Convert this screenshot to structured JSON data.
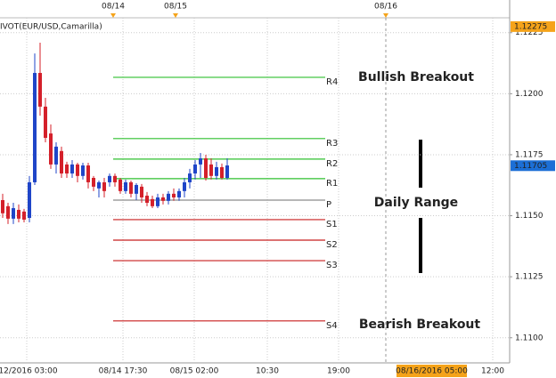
{
  "chart_data": {
    "type": "candlestick",
    "indicator": "IVOT(EUR/USD,Camarilla)",
    "ylim": [
      1.10908,
      1.12311
    ],
    "yticks": [
      {
        "value": 1.11,
        "label": "1.1100"
      },
      1.1125,
      {
        "value": 1.115,
        "label": "1.1150"
      },
      1.1175,
      {
        "value": 1.12,
        "label": "1.1200"
      },
      1.1225
    ],
    "grid": true,
    "up_color": "#1f45c8",
    "down_color": "#d4202a",
    "open": [
      1.11564,
      1.11539,
      1.11488,
      1.11524,
      1.11517,
      1.11491,
      1.11637,
      1.12085,
      1.11947,
      1.11837,
      1.1171,
      1.11765,
      1.1171,
      1.11673,
      1.1171,
      1.11663,
      1.11706,
      1.11655,
      1.11612,
      1.11637,
      1.11637,
      1.11663,
      1.11648,
      1.11601,
      1.11637,
      1.1159,
      1.11619,
      1.11582,
      1.11568,
      1.11539,
      1.11575,
      1.11561,
      1.1159,
      1.11575,
      1.11601,
      1.11637,
      1.11673,
      1.1171,
      1.11735,
      1.1171,
      1.11663,
      1.11699,
      1.11655
    ],
    "high": [
      1.1159,
      1.11553,
      1.11553,
      1.11546,
      1.11528,
      1.11663,
      1.12165,
      1.12209,
      1.11983,
      1.11874,
      1.11801,
      1.11783,
      1.11721,
      1.11728,
      1.11717,
      1.11717,
      1.11717,
      1.11663,
      1.11644,
      1.11655,
      1.11673,
      1.11673,
      1.11655,
      1.11648,
      1.11644,
      1.11633,
      1.1163,
      1.11597,
      1.11582,
      1.1159,
      1.1159,
      1.11601,
      1.11612,
      1.11612,
      1.11655,
      1.11692,
      1.11728,
      1.11757,
      1.1175,
      1.11735,
      1.11721,
      1.11714,
      1.11735
    ],
    "low": [
      1.11491,
      1.11466,
      1.11466,
      1.11473,
      1.11473,
      1.11473,
      1.11626,
      1.1191,
      1.11801,
      1.11692,
      1.11673,
      1.11655,
      1.11655,
      1.11655,
      1.11637,
      1.11648,
      1.11612,
      1.11601,
      1.11575,
      1.11575,
      1.11619,
      1.11619,
      1.1159,
      1.1159,
      1.11575,
      1.11564,
      1.11553,
      1.11539,
      1.11531,
      1.11531,
      1.11546,
      1.11546,
      1.11561,
      1.11561,
      1.11575,
      1.11612,
      1.11648,
      1.11655,
      1.11644,
      1.11648,
      1.11648,
      1.11648,
      1.11648
    ],
    "close": [
      1.1151,
      1.11488,
      1.11531,
      1.11488,
      1.11484,
      1.11637,
      1.12085,
      1.11947,
      1.11819,
      1.1171,
      1.11783,
      1.11673,
      1.11673,
      1.1171,
      1.11663,
      1.11706,
      1.11637,
      1.11619,
      1.11637,
      1.11601,
      1.11663,
      1.11637,
      1.11601,
      1.11637,
      1.1159,
      1.11626,
      1.11575,
      1.11553,
      1.11539,
      1.11575,
      1.11561,
      1.1159,
      1.11575,
      1.11601,
      1.11637,
      1.11673,
      1.1171,
      1.11735,
      1.11655,
      1.11663,
      1.11699,
      1.11655,
      1.11706
    ],
    "x_labels": [
      "/12/2016 03:00",
      "08/14 17:30",
      "08/15 02:00",
      "10:30",
      "19:00",
      "12:00"
    ],
    "cursor_label": "08/16/2016 05:00",
    "session_markers": [
      "08/14",
      "08/15",
      "08/16"
    ],
    "levels": {
      "names": [
        "R4",
        "R3",
        "R2",
        "R1",
        "P",
        "S1",
        "S2",
        "S3",
        "S4"
      ],
      "values": [
        1.12067,
        1.11816,
        1.11732,
        1.11652,
        1.11564,
        1.11484,
        1.114,
        1.11316,
        1.11069
      ],
      "colors": [
        "#2fbf2f",
        "#2fbf2f",
        "#2fbf2f",
        "#2fbf2f",
        "#8c8c8c",
        "#c81e1e",
        "#c81e1e",
        "#c81e1e",
        "#c81e1e"
      ]
    },
    "price_labels": [
      {
        "value": 1.12275,
        "color": "#f5a31a"
      },
      {
        "value": 1.11705,
        "color": "#1c6fd6"
      }
    ],
    "annotations": [
      "Bullish Breakout",
      "Daily Range",
      "Bearish Breakout"
    ]
  }
}
